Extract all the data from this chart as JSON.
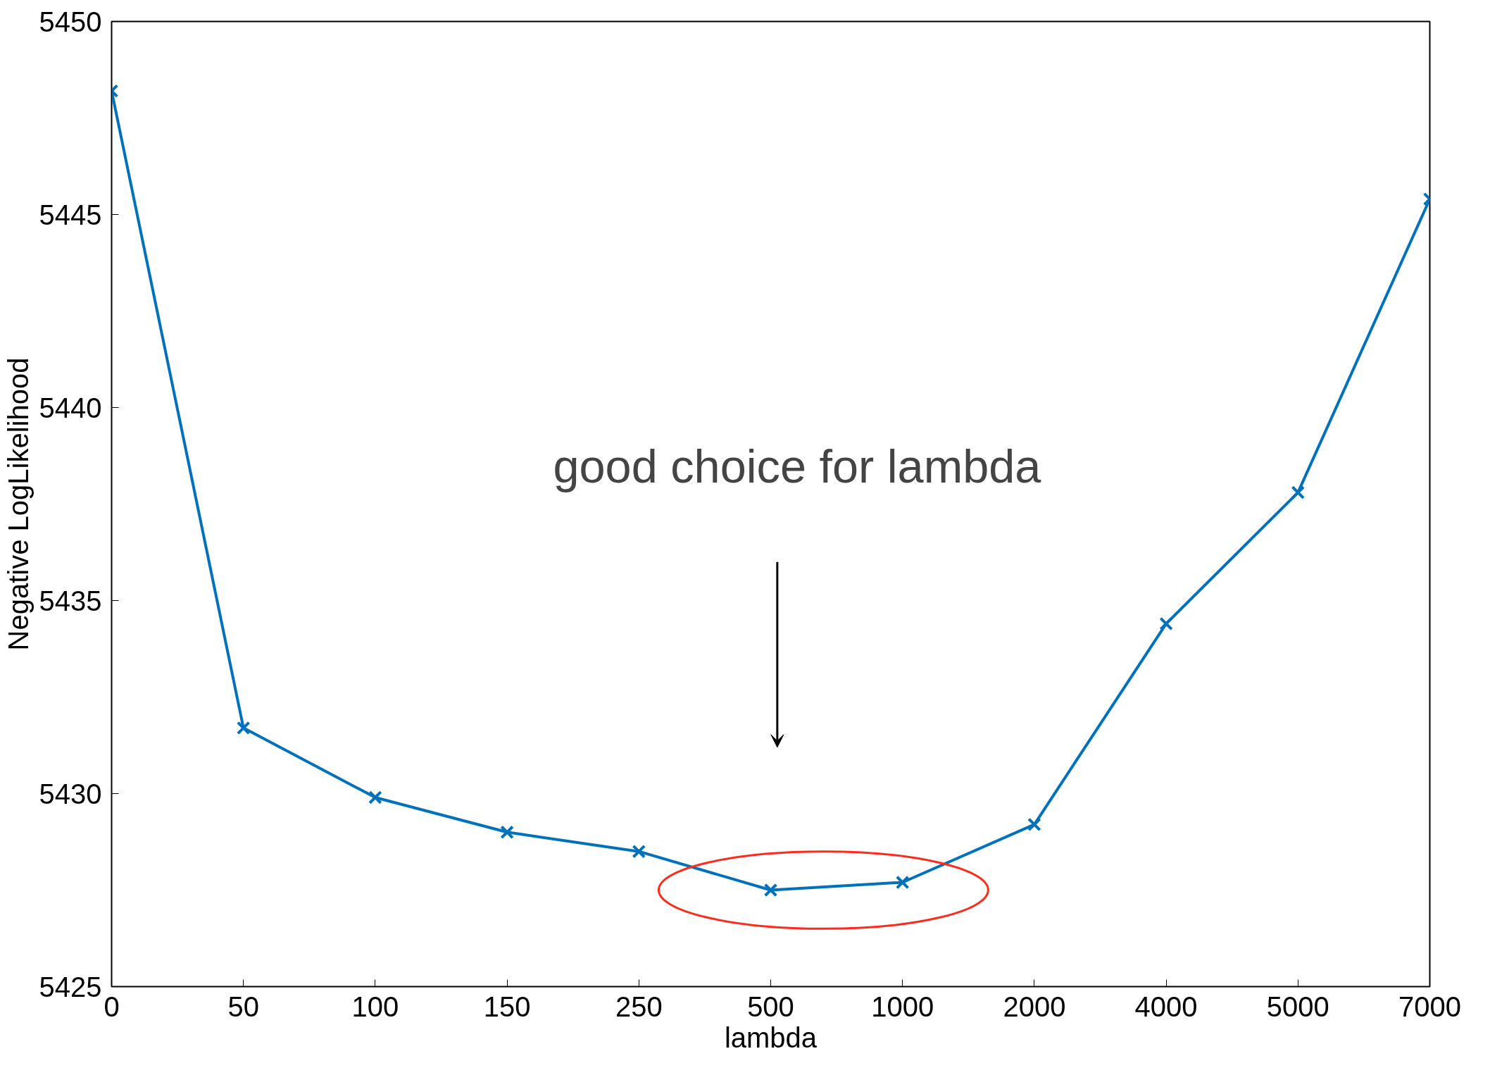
{
  "chart_data": {
    "type": "line",
    "xlabel": "lambda",
    "ylabel": "Negative LogLikelihood",
    "categories": [
      "0",
      "50",
      "100",
      "150",
      "250",
      "500",
      "1000",
      "2000",
      "4000",
      "5000",
      "7000"
    ],
    "series": [
      {
        "color": "#0072bd",
        "values": [
          5448.2,
          5431.7,
          5429.9,
          5429.0,
          5428.5,
          5427.5,
          5427.7,
          5429.2,
          5434.4,
          5437.8,
          5445.4
        ]
      }
    ],
    "ylim": [
      5425,
      5450
    ],
    "yticks": [
      5425,
      5430,
      5435,
      5440,
      5445,
      5450
    ],
    "marker": "cross",
    "line_style": "solid",
    "annotations": [
      "good choice for lambda"
    ]
  }
}
